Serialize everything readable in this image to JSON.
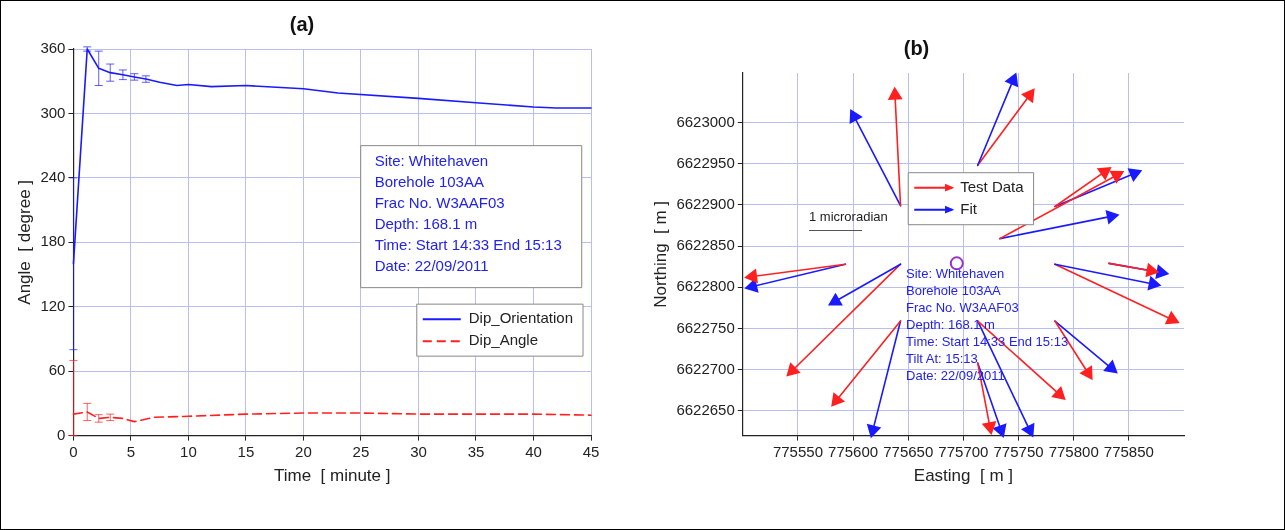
{
  "chart_data": [
    {
      "type": "line",
      "title": "(a)",
      "xlabel": "Time  [ minute ]",
      "ylabel": "Angle  [ degree ]",
      "xlim": [
        0,
        45
      ],
      "xticks": [
        0,
        5,
        10,
        15,
        20,
        25,
        30,
        35,
        40,
        45
      ],
      "ylim": [
        0,
        360
      ],
      "yticks": [
        0,
        60,
        120,
        180,
        240,
        300,
        360
      ],
      "grid": true,
      "legend": "right",
      "marker": "none",
      "annotations": [
        "Site: Whitehaven",
        "Borehole 103AA",
        "Frac No. W3AAF03",
        "Depth: 168.1 m",
        "Time: Start 14:33 End 15:13",
        "Date: 22/09/2011"
      ],
      "series": [
        {
          "name": "Dip_Orientation",
          "color": "#1a1aff",
          "line_style": "solid",
          "x": [
            0,
            1.2,
            2.2,
            3.2,
            4.3,
            5.3,
            6.3,
            7.5,
            9,
            10,
            12,
            15,
            20,
            23,
            30,
            35,
            40,
            42,
            45
          ],
          "values": [
            160,
            360,
            342,
            338,
            336,
            334,
            332,
            329,
            326,
            327,
            325,
            326,
            323,
            319,
            314,
            310,
            306,
            305,
            305
          ],
          "errors": [
            80,
            2,
            16,
            8,
            4.5,
            3,
            3,
            null,
            null,
            null,
            null,
            null,
            null,
            null,
            null,
            null,
            null,
            null,
            null
          ]
        },
        {
          "name": "Dip_Angle",
          "color": "#ff2020",
          "line_style": "dashed",
          "x": [
            0,
            1.2,
            2.2,
            3.2,
            4.3,
            5.3,
            7,
            10,
            15,
            20,
            25,
            30,
            35,
            40,
            45
          ],
          "values": [
            20,
            22,
            16,
            17,
            16,
            13,
            17,
            18,
            20,
            21,
            21,
            20,
            20,
            20,
            19
          ],
          "errors": [
            [
              0,
              70
            ],
            8,
            3.5,
            3,
            null,
            null,
            null,
            null,
            null,
            null,
            null,
            null,
            null,
            null,
            null
          ]
        }
      ]
    },
    {
      "type": "line",
      "title": "(b)",
      "xlabel": "Easting  [ m ]",
      "ylabel": "Northing  [ m ]",
      "xlim": [
        775500,
        775900
      ],
      "xticks": [
        775550,
        775600,
        775650,
        775700,
        775750,
        775800,
        775850
      ],
      "ylim": [
        6622620,
        6623060
      ],
      "yticks": [
        6622650,
        6622700,
        6622750,
        6622800,
        6622850,
        6622900,
        6622950,
        6623000
      ],
      "grid": true,
      "legend": "top",
      "marker": "triangle",
      "annotations": [
        "1 microradian",
        "Site: Whitehaven",
        "Borehole 103AA",
        "Frac No. W3AAF03",
        "Depth: 168.1 m",
        "Time: Start 14:33 End 15:13",
        "Tilt At: 15:13",
        "Date: 22/09/2011"
      ],
      "series": [
        {
          "name": "Test Data",
          "color": "#ff2020",
          "x": [
            775643,
            775638
          ],
          "values": [
            6622899,
            6623033
          ]
        },
        {
          "name": "Fit",
          "color": "#1a1aff",
          "x": [
            775643,
            775601
          ],
          "values": [
            6622899,
            6623007
          ]
        },
        {
          "color": "#1a1aff",
          "x": [
            775713,
            775745
          ],
          "values": [
            6622948,
            6623051
          ]
        },
        {
          "color": "#ff2020",
          "x": [
            775713,
            775760
          ],
          "values": [
            6622948,
            6623033
          ]
        },
        {
          "color": "#ff2020",
          "x": [
            775783,
            775828
          ],
          "values": [
            6622898,
            6622940
          ]
        },
        {
          "color": "#ff2020",
          "x": [
            775733,
            775839
          ],
          "values": [
            6622859,
            6622936
          ]
        },
        {
          "color": "#1a1aff",
          "x": [
            775783,
            775855
          ],
          "values": [
            6622898,
            6622938
          ]
        },
        {
          "color": "#1a1aff",
          "x": [
            775733,
            775834
          ],
          "values": [
            6622859,
            6622886
          ]
        },
        {
          "color": "#ff2020",
          "x": [
            775593,
            775509
          ],
          "values": [
            6622828,
            6622813
          ]
        },
        {
          "color": "#1a1aff",
          "x": [
            775593,
            775509
          ],
          "values": [
            6622828,
            6622801
          ]
        },
        {
          "color": "#1a1aff",
          "x": [
            775643,
            775584
          ],
          "values": [
            6622828,
            6622783
          ]
        },
        {
          "color": "#ff2020",
          "x": [
            775643,
            775545
          ],
          "values": [
            6622828,
            6622699
          ]
        },
        {
          "color": "#ff2020",
          "x": [
            775643,
            775585
          ],
          "values": [
            6622759,
            6622663
          ]
        },
        {
          "color": "#1a1aff",
          "x": [
            775643,
            775618
          ],
          "values": [
            6622759,
            6622627
          ]
        },
        {
          "color": "#ff2020",
          "x": [
            775713,
            775787
          ],
          "values": [
            6622759,
            6622670
          ]
        },
        {
          "color": "#1a1aff",
          "x": [
            775713,
            775760
          ],
          "values": [
            6622759,
            6622627
          ]
        },
        {
          "color": "#ff2020",
          "x": [
            775713,
            775724
          ],
          "values": [
            6622708,
            6622631
          ]
        },
        {
          "color": "#1a1aff",
          "x": [
            775713,
            775734
          ],
          "values": [
            6622708,
            6622627
          ]
        },
        {
          "color": "#ff2020",
          "x": [
            775783,
            775813
          ],
          "values": [
            6622759,
            6622696
          ]
        },
        {
          "color": "#1a1aff",
          "x": [
            775783,
            775834
          ],
          "values": [
            6622759,
            6622702
          ]
        },
        {
          "color": "#1a1aff",
          "x": [
            775783,
            775872
          ],
          "values": [
            6622828,
            6622804
          ]
        },
        {
          "color": "#ff2020",
          "x": [
            775783,
            775889
          ],
          "values": [
            6622828,
            6622761
          ]
        },
        {
          "color": "#ff2020",
          "x": [
            775832,
            775870
          ],
          "values": [
            6622829,
            6622820
          ]
        },
        {
          "color": "#1a1aff",
          "x": [
            775832,
            775879
          ],
          "values": [
            6622829,
            6622818
          ]
        },
        {
          "type": "scatter",
          "marker": "circle",
          "color": "#9933cc",
          "x": [
            775694
          ],
          "values": [
            6622829
          ]
        }
      ]
    }
  ]
}
